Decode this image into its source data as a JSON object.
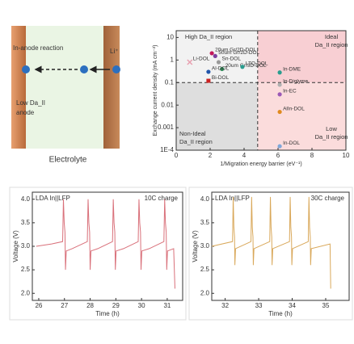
{
  "schematic": {
    "reaction_label": "In-anode reaction",
    "ion_label": "Li⁺",
    "anode_label": [
      "Low Da_II",
      "anode"
    ],
    "electrolyte_label": "Electrolyte"
  },
  "chart_data": [
    {
      "type": "scatter",
      "xlabel": "1/Migration energy barrier (eV⁻¹)",
      "ylabel": "Exchange current density (mA cm⁻²)",
      "log_y": true,
      "xlim": [
        0,
        10
      ],
      "ylim": [
        0.0001,
        20
      ],
      "xticks": [
        0,
        2,
        4,
        6,
        8,
        10
      ],
      "yticks": [
        {
          "value": 0.0001,
          "label": "1E-4"
        },
        0.001,
        0.01,
        0.1,
        1,
        10
      ],
      "x_threshold": 4.8,
      "y_threshold": 0.1,
      "annotations": [
        "High Da_II region",
        "Ideal",
        "Da_II region",
        "Low",
        "Da_II region",
        "Non-Ideal",
        "Da_II region"
      ],
      "series": [
        {
          "name": "Li-DOL",
          "color": "#e8a0b0",
          "marker": "cross",
          "x": [
            0.8
          ],
          "values": [
            0.8
          ]
        },
        {
          "name": "20um Gr/2D-DOL",
          "color": "#c2185b",
          "marker": "circle",
          "x": [
            2.1
          ],
          "values": [
            2
          ]
        },
        {
          "name": "50um Gr/2D-DOL",
          "color": "#7b3f9e",
          "marker": "circle",
          "x": [
            2.3
          ],
          "values": [
            1.5
          ]
        },
        {
          "name": "Sn-DOL",
          "color": "#9a9a9a",
          "marker": "circle",
          "x": [
            2.5
          ],
          "values": [
            0.8
          ]
        },
        {
          "name": "20um Gr/3D-DOL",
          "color": "#2e8b57",
          "marker": "circle",
          "x": [
            2.7
          ],
          "values": [
            0.4
          ]
        },
        {
          "name": "Al-DOL",
          "color": "#2255aa",
          "marker": "circle",
          "x": [
            1.9
          ],
          "values": [
            0.3
          ]
        },
        {
          "name": "Bi-DOL",
          "color": "#cc2222",
          "marker": "square",
          "x": [
            1.9
          ],
          "values": [
            0.12
          ]
        },
        {
          "name": "LTO-DOL",
          "color": "#2a9d8f",
          "marker": "circle",
          "x": [
            3.9
          ],
          "values": [
            0.5
          ]
        },
        {
          "name": "In-DME",
          "color": "#2a9d8f",
          "marker": "circle",
          "x": [
            6.1
          ],
          "values": [
            0.28
          ]
        },
        {
          "name": "In-Diglyme",
          "color": "#b0b0b0",
          "marker": "circle",
          "x": [
            6.1
          ],
          "values": [
            0.08
          ]
        },
        {
          "name": "In-EC",
          "color": "#9b59b6",
          "marker": "circle",
          "x": [
            6.1
          ],
          "values": [
            0.03
          ]
        },
        {
          "name": "AlIn-DOL",
          "color": "#e08a1e",
          "marker": "circle",
          "x": [
            6.1
          ],
          "values": [
            0.005
          ]
        },
        {
          "name": "In-DOL",
          "color": "#7fa7d9",
          "marker": "circle",
          "x": [
            6.1
          ],
          "values": [
            0.00015
          ]
        }
      ]
    },
    {
      "type": "line",
      "label": "LDA In||LFP",
      "condition": "10C charge",
      "xlabel": "Time (h)",
      "ylabel": "Voltage (V)",
      "color": "#d9707a",
      "xlim": [
        25.75,
        31.6
      ],
      "ylim": [
        1.85,
        4.15
      ],
      "xticks": [
        26,
        27,
        28,
        29,
        30,
        31
      ],
      "yticks": [
        {
          "value": 2,
          "label": "2.0"
        },
        2.5,
        {
          "value": 3,
          "label": "3.0"
        },
        3.5,
        {
          "value": 4,
          "label": "4.0"
        }
      ],
      "x": [
        25.9,
        26.5,
        26.93,
        26.96,
        26.99,
        27.02,
        27.04,
        27.07,
        27.3,
        27.89,
        27.92,
        27.95,
        27.98,
        28.0,
        28.03,
        28.3,
        28.87,
        28.9,
        28.93,
        28.96,
        28.98,
        29.01,
        29.3,
        29.87,
        29.9,
        29.93,
        29.96,
        29.98,
        30.01,
        30.3,
        30.87,
        30.9,
        30.93,
        30.96,
        30.98,
        31.01,
        31.25,
        31.3
      ],
      "values": [
        3.0,
        3.05,
        3.1,
        4.0,
        3.5,
        3.3,
        2.5,
        2.9,
        2.95,
        3.1,
        4.0,
        3.5,
        3.3,
        2.5,
        2.9,
        2.95,
        3.1,
        4.0,
        3.5,
        3.3,
        2.5,
        2.9,
        2.95,
        3.1,
        4.0,
        3.5,
        3.3,
        2.5,
        2.9,
        2.95,
        3.1,
        4.0,
        3.5,
        3.3,
        2.5,
        2.9,
        2.95,
        2.1
      ]
    },
    {
      "type": "line",
      "label": "LDA In||LFP",
      "condition": "30C charge",
      "xlabel": "Time (h)",
      "ylabel": "Voltage (V)",
      "color": "#d9a85a",
      "xlim": [
        31.6,
        35.7
      ],
      "ylim": [
        1.85,
        4.15
      ],
      "xticks": [
        32,
        33,
        34,
        35
      ],
      "yticks": [
        {
          "value": 2,
          "label": "2.0"
        },
        2.5,
        {
          "value": 3,
          "label": "3.0"
        },
        3.5,
        {
          "value": 4,
          "label": "4.0"
        }
      ],
      "x": [
        31.6,
        32.22,
        32.24,
        32.26,
        32.28,
        32.29,
        32.31,
        32.77,
        32.79,
        32.81,
        32.83,
        32.84,
        32.86,
        33.33,
        33.35,
        33.37,
        33.39,
        33.4,
        33.42,
        33.92,
        33.94,
        33.96,
        33.98,
        33.99,
        34.01,
        34.48,
        34.5,
        34.52,
        34.54,
        34.55,
        34.57,
        35.13,
        35.15
      ],
      "values": [
        3.0,
        3.1,
        4.05,
        3.4,
        3.2,
        2.6,
        2.95,
        3.1,
        4.05,
        3.4,
        3.2,
        2.6,
        2.95,
        3.1,
        4.05,
        3.4,
        3.2,
        2.6,
        2.95,
        3.1,
        4.05,
        3.4,
        3.2,
        2.6,
        2.95,
        3.1,
        4.05,
        3.4,
        3.2,
        2.6,
        2.95,
        3.05,
        2.1
      ]
    }
  ]
}
